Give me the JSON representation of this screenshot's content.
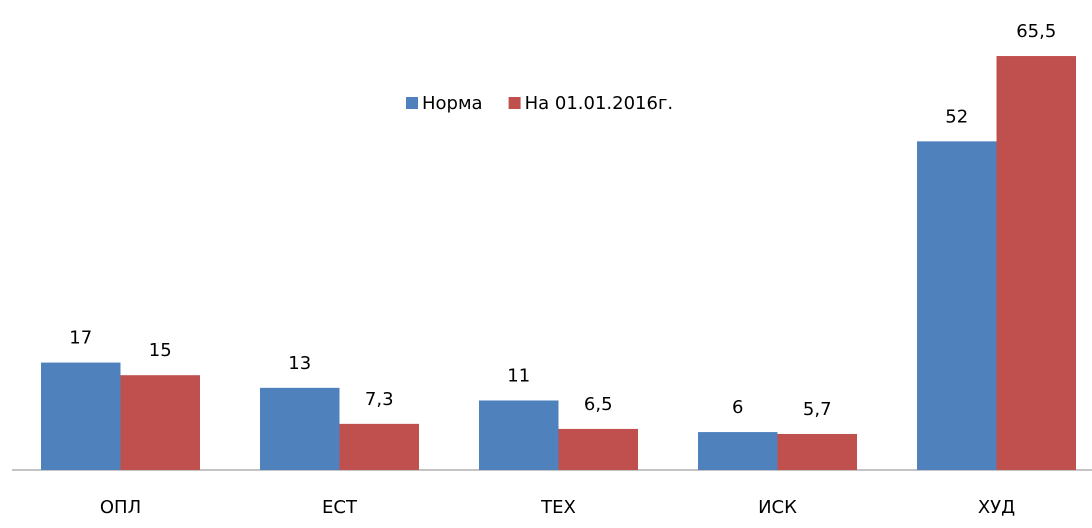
{
  "chart_data": {
    "type": "bar",
    "categories": [
      "ОПЛ",
      "ЕСТ",
      "ТЕХ",
      "ИСК",
      "ХУД"
    ],
    "series": [
      {
        "name": "Норма",
        "color": "#4f81bd",
        "values": [
          17,
          13,
          11,
          6,
          52
        ],
        "value_labels": [
          "17",
          "13",
          "11",
          "6",
          "52"
        ]
      },
      {
        "name": "На 01.01.2016г.",
        "color": "#c0504d",
        "values": [
          15,
          7.3,
          6.5,
          5.7,
          65.5
        ],
        "value_labels": [
          "15",
          "7,3",
          "6,5",
          "5,7",
          "65,5"
        ]
      }
    ],
    "legend": "top"
  }
}
